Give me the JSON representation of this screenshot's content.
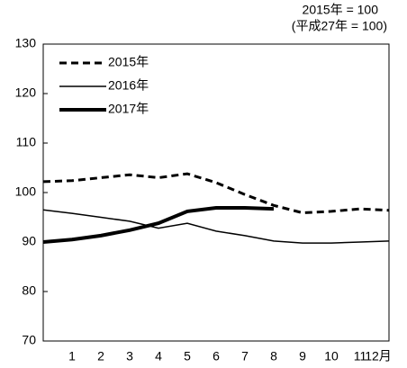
{
  "chart_data": {
    "type": "line",
    "annotations": [
      "2015年 = 100",
      "(平成27年 = 100)"
    ],
    "categories": [
      null,
      "1",
      "2",
      "3",
      "4",
      "5",
      "6",
      "7",
      "8",
      "9",
      "10",
      "11",
      "12月"
    ],
    "series": [
      {
        "name": "2015年",
        "color": "#000000",
        "dash": "dashed",
        "width": 3,
        "values": [
          102.2,
          102.4,
          103,
          103.6,
          103,
          103.8,
          102,
          99.6,
          97.4,
          95.9,
          96.2,
          96.7,
          96.4
        ]
      },
      {
        "name": "2016年",
        "color": "#000000",
        "dash": "solid",
        "width": 1.5,
        "values": [
          96.5,
          95.8,
          95,
          94.2,
          92.8,
          93.8,
          92.2,
          91.3,
          90.2,
          89.8,
          89.8,
          90,
          90.2
        ]
      },
      {
        "name": "2017年",
        "color": "#000000",
        "dash": "solid",
        "width": 4,
        "values": [
          90,
          90.5,
          91.3,
          92.4,
          93.8,
          96.2,
          96.9,
          96.9,
          96.7,
          null,
          null,
          null,
          null
        ]
      }
    ],
    "ylim": [
      70,
      130
    ],
    "yticks": [
      70,
      80,
      90,
      100,
      110,
      120,
      130
    ]
  }
}
